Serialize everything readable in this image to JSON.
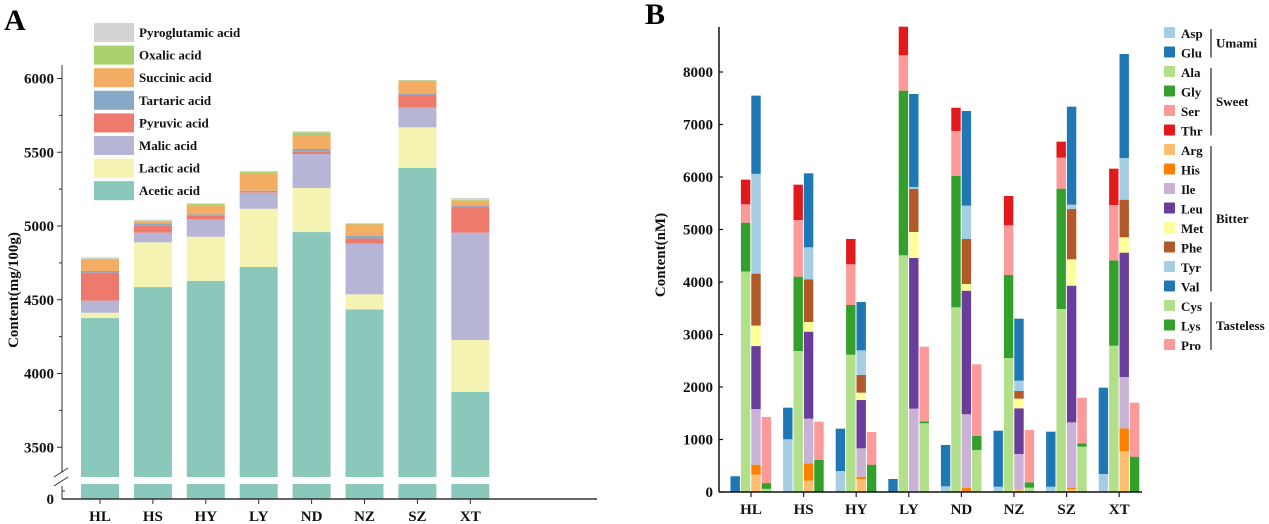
{
  "chart_data": [
    {
      "panel": "A",
      "type": "bar",
      "stacked": true,
      "ylabel": "Content(mg/100g)",
      "xlabel": "",
      "ylim": [
        3300,
        6100
      ],
      "y_axis_break": true,
      "y_ticks": [
        0,
        3500,
        4000,
        4500,
        5000,
        5500,
        6000
      ],
      "grid": false,
      "legend_position": "top-left",
      "categories": [
        "HL",
        "HS",
        "HY",
        "LY",
        "ND",
        "NZ",
        "SZ",
        "XT"
      ],
      "series": [
        {
          "name": "Acetic acid",
          "color": "#8AC8BB",
          "values": [
            4376,
            4586,
            4627,
            4722,
            4959,
            4435,
            5395,
            3875
          ]
        },
        {
          "name": "Lactic acid",
          "color": "#F5F3B1",
          "values": [
            36,
            303,
            300,
            395,
            299,
            102,
            274,
            352
          ]
        },
        {
          "name": "Malic acid",
          "color": "#B7B5D6",
          "values": [
            82,
            66,
            118,
            109,
            230,
            343,
            133,
            728
          ]
        },
        {
          "name": "Pyruvic acid",
          "color": "#EE7A6E",
          "values": [
            190,
            47,
            25,
            4,
            16,
            36,
            88,
            176
          ]
        },
        {
          "name": "Tartaric acid",
          "color": "#86A9C8",
          "values": [
            11,
            16,
            9,
            9,
            18,
            16,
            9,
            9
          ]
        },
        {
          "name": "Succinic acid",
          "color": "#F3AE64",
          "values": [
            75,
            14,
            59,
            118,
            95,
            79,
            86,
            32
          ]
        },
        {
          "name": "Oxalic acid",
          "color": "#A9D16E",
          "values": [
            8,
            4,
            11,
            11,
            18,
            3,
            2,
            5
          ]
        },
        {
          "name": "Pyroglutamic acid",
          "color": "#D3D3D3",
          "values": [
            10,
            7,
            5,
            5,
            7,
            6,
            3,
            13
          ]
        }
      ]
    },
    {
      "panel": "B",
      "type": "bar",
      "stacked": true,
      "grouped": true,
      "ylabel": "Content(nM)",
      "xlabel": "",
      "ylim": [
        0,
        8800
      ],
      "y_ticks": [
        0,
        1000,
        2000,
        3000,
        4000,
        5000,
        6000,
        7000,
        8000
      ],
      "grid": false,
      "legend_position": "right",
      "categories": [
        "HL",
        "HS",
        "HY",
        "LY",
        "ND",
        "NZ",
        "SZ",
        "XT"
      ],
      "groups": [
        {
          "name": "Umami",
          "members": [
            "Asp",
            "Glu"
          ]
        },
        {
          "name": "Sweet",
          "members": [
            "Ala",
            "Gly",
            "Ser",
            "Thr"
          ]
        },
        {
          "name": "Bitter",
          "members": [
            "Arg",
            "His",
            "Ile",
            "Leu",
            "Met",
            "Phe",
            "Tyr",
            "Val"
          ]
        },
        {
          "name": "Tasteless",
          "members": [
            "Cys",
            "Lys",
            "Pro"
          ]
        }
      ],
      "series": [
        {
          "name": "Asp",
          "group": "Umami",
          "color": "#A6CEE3",
          "values": [
            0,
            1004,
            400,
            0,
            108,
            100,
            100,
            343
          ]
        },
        {
          "name": "Glu",
          "group": "Umami",
          "color": "#1F78B4",
          "values": [
            300,
            602,
            806,
            248,
            787,
            1068,
            1049,
            1644
          ]
        },
        {
          "name": "Ala",
          "group": "Sweet",
          "color": "#B2DF8A",
          "values": [
            4200,
            2686,
            2616,
            4508,
            3518,
            2552,
            3486,
            2787
          ]
        },
        {
          "name": "Gly",
          "group": "Sweet",
          "color": "#33A02C",
          "values": [
            930,
            1416,
            946,
            3137,
            2501,
            1581,
            2292,
            1626
          ]
        },
        {
          "name": "Ser",
          "group": "Sweet",
          "color": "#FB9A99",
          "values": [
            350,
            1079,
            775,
            673,
            857,
            947,
            590,
            1054
          ]
        },
        {
          "name": "Thr",
          "group": "Sweet",
          "color": "#E31A1C",
          "values": [
            470,
            673,
            482,
            545,
            444,
            558,
            305,
            692
          ]
        },
        {
          "name": "Arg",
          "group": "Bitter",
          "color": "#FDBF6F",
          "values": [
            330,
            216,
            248,
            0,
            0,
            57,
            57,
            775
          ]
        },
        {
          "name": "His",
          "group": "Bitter",
          "color": "#FF7F00",
          "values": [
            190,
            330,
            44,
            0,
            76,
            0,
            26,
            438
          ]
        },
        {
          "name": "Ile",
          "group": "Bitter",
          "color": "#CAB2D6",
          "values": [
            1060,
            851,
            540,
            1587,
            1404,
            667,
            1244,
            977
          ]
        },
        {
          "name": "Leu",
          "group": "Bitter",
          "color": "#6A3D9A",
          "values": [
            1200,
            1657,
            920,
            2870,
            2354,
            870,
            2603,
            2369
          ]
        },
        {
          "name": "Met",
          "group": "Bitter",
          "color": "#FFFF99",
          "values": [
            390,
            184,
            140,
            495,
            128,
            184,
            502,
            292
          ]
        },
        {
          "name": "Phe",
          "group": "Bitter",
          "color": "#B15928",
          "values": [
            990,
            813,
            337,
            825,
            857,
            146,
            958,
            717
          ]
        },
        {
          "name": "Tyr",
          "group": "Bitter",
          "color": "#A6CEE3",
          "values": [
            1900,
            609,
            469,
            33,
            635,
            196,
            83,
            794
          ]
        },
        {
          "name": "Val",
          "group": "Bitter",
          "color": "#1F78B4",
          "values": [
            1490,
            1410,
            921,
            1771,
            1803,
            1181,
            1866,
            1981
          ]
        },
        {
          "name": "Cys",
          "group": "Tasteless",
          "color": "#B2DF8A",
          "values": [
            60,
            0,
            0,
            1308,
            800,
            83,
            863,
            0
          ]
        },
        {
          "name": "Lys",
          "group": "Tasteless",
          "color": "#33A02C",
          "values": [
            110,
            610,
            521,
            38,
            267,
            101,
            64,
            673
          ]
        },
        {
          "name": "Pro",
          "group": "Tasteless",
          "color": "#FB9A99",
          "values": [
            1260,
            730,
            622,
            1422,
            1365,
            997,
            869,
            1029
          ]
        }
      ]
    }
  ],
  "labels": {
    "panel_a": "A",
    "panel_b": "B",
    "break_zero": "0"
  }
}
